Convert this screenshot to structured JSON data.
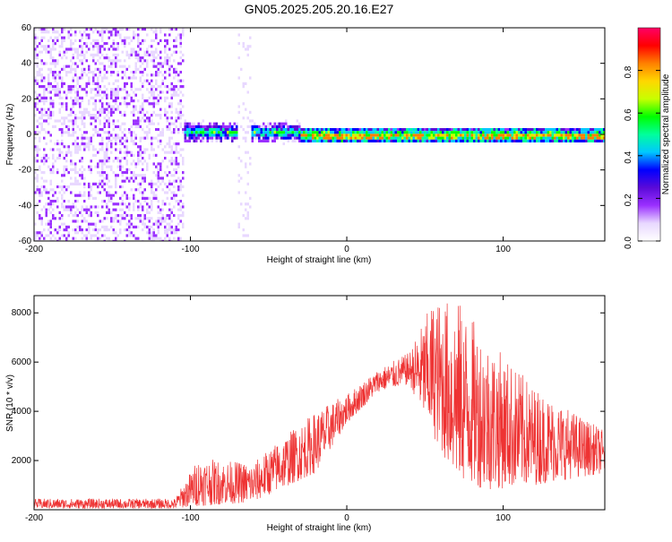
{
  "title": "GN05.2025.205.20.16.E27",
  "chart_data": [
    {
      "type": "heatmap",
      "xlabel": "Height of straight line (km)",
      "ylabel": "Frequency (Hz)",
      "xlim": [
        -200,
        165
      ],
      "ylim": [
        -60,
        60
      ],
      "xticks": [
        -200,
        -100,
        0,
        100
      ],
      "yticks": [
        -60,
        -40,
        -20,
        0,
        20,
        40,
        60
      ],
      "colorbar": {
        "label": "Normalized spectral amplitude",
        "range": [
          0,
          1
        ],
        "ticks": [
          "0.0",
          "0.2",
          "0.4",
          "0.6",
          "0.8"
        ],
        "colors": [
          "#ffffff",
          "#e8d8ff",
          "#9b30ff",
          "#5a0ad8",
          "#0000ff",
          "#00c8ff",
          "#00ff9b",
          "#00ff00",
          "#c8ff00",
          "#ffd700",
          "#ff8000",
          "#ff0000",
          "#ff0066"
        ]
      },
      "regions": [
        {
          "x": [
            -200,
            -105
          ],
          "freq": [
            -60,
            60
          ],
          "amplitude": 0.15
        },
        {
          "x": [
            -70,
            -62
          ],
          "freq": [
            -60,
            60
          ],
          "amplitude": 0.1
        },
        {
          "x": [
            -108,
            -30
          ],
          "freq": [
            -6,
            10
          ],
          "amplitude": 0.4
        },
        {
          "x": [
            -30,
            165
          ],
          "freq": [
            -4,
            4
          ],
          "amplitude": 0.55
        }
      ]
    },
    {
      "type": "line",
      "xlabel": "Height of straight line (km)",
      "ylabel": "SNR (10 * v/v)",
      "xlim": [
        -200,
        165
      ],
      "ylim": [
        0,
        8700
      ],
      "xticks": [
        -200,
        -100,
        0,
        100
      ],
      "yticks": [
        2000,
        4000,
        6000,
        8000
      ],
      "color": "#ee3333",
      "envelope": [
        {
          "x": -200,
          "low": 50,
          "high": 450
        },
        {
          "x": -110,
          "low": 50,
          "high": 450
        },
        {
          "x": -95,
          "low": 150,
          "high": 2100
        },
        {
          "x": -60,
          "low": 300,
          "high": 1900
        },
        {
          "x": -40,
          "low": 900,
          "high": 3000
        },
        {
          "x": -20,
          "low": 1500,
          "high": 4000
        },
        {
          "x": 0,
          "low": 3500,
          "high": 4700
        },
        {
          "x": 20,
          "low": 4800,
          "high": 5700
        },
        {
          "x": 40,
          "low": 5100,
          "high": 6400
        },
        {
          "x": 55,
          "low": 3000,
          "high": 8500
        },
        {
          "x": 70,
          "low": 1200,
          "high": 8600
        },
        {
          "x": 90,
          "low": 800,
          "high": 7000
        },
        {
          "x": 120,
          "low": 1000,
          "high": 5000
        },
        {
          "x": 165,
          "low": 1500,
          "high": 3200
        }
      ]
    }
  ]
}
